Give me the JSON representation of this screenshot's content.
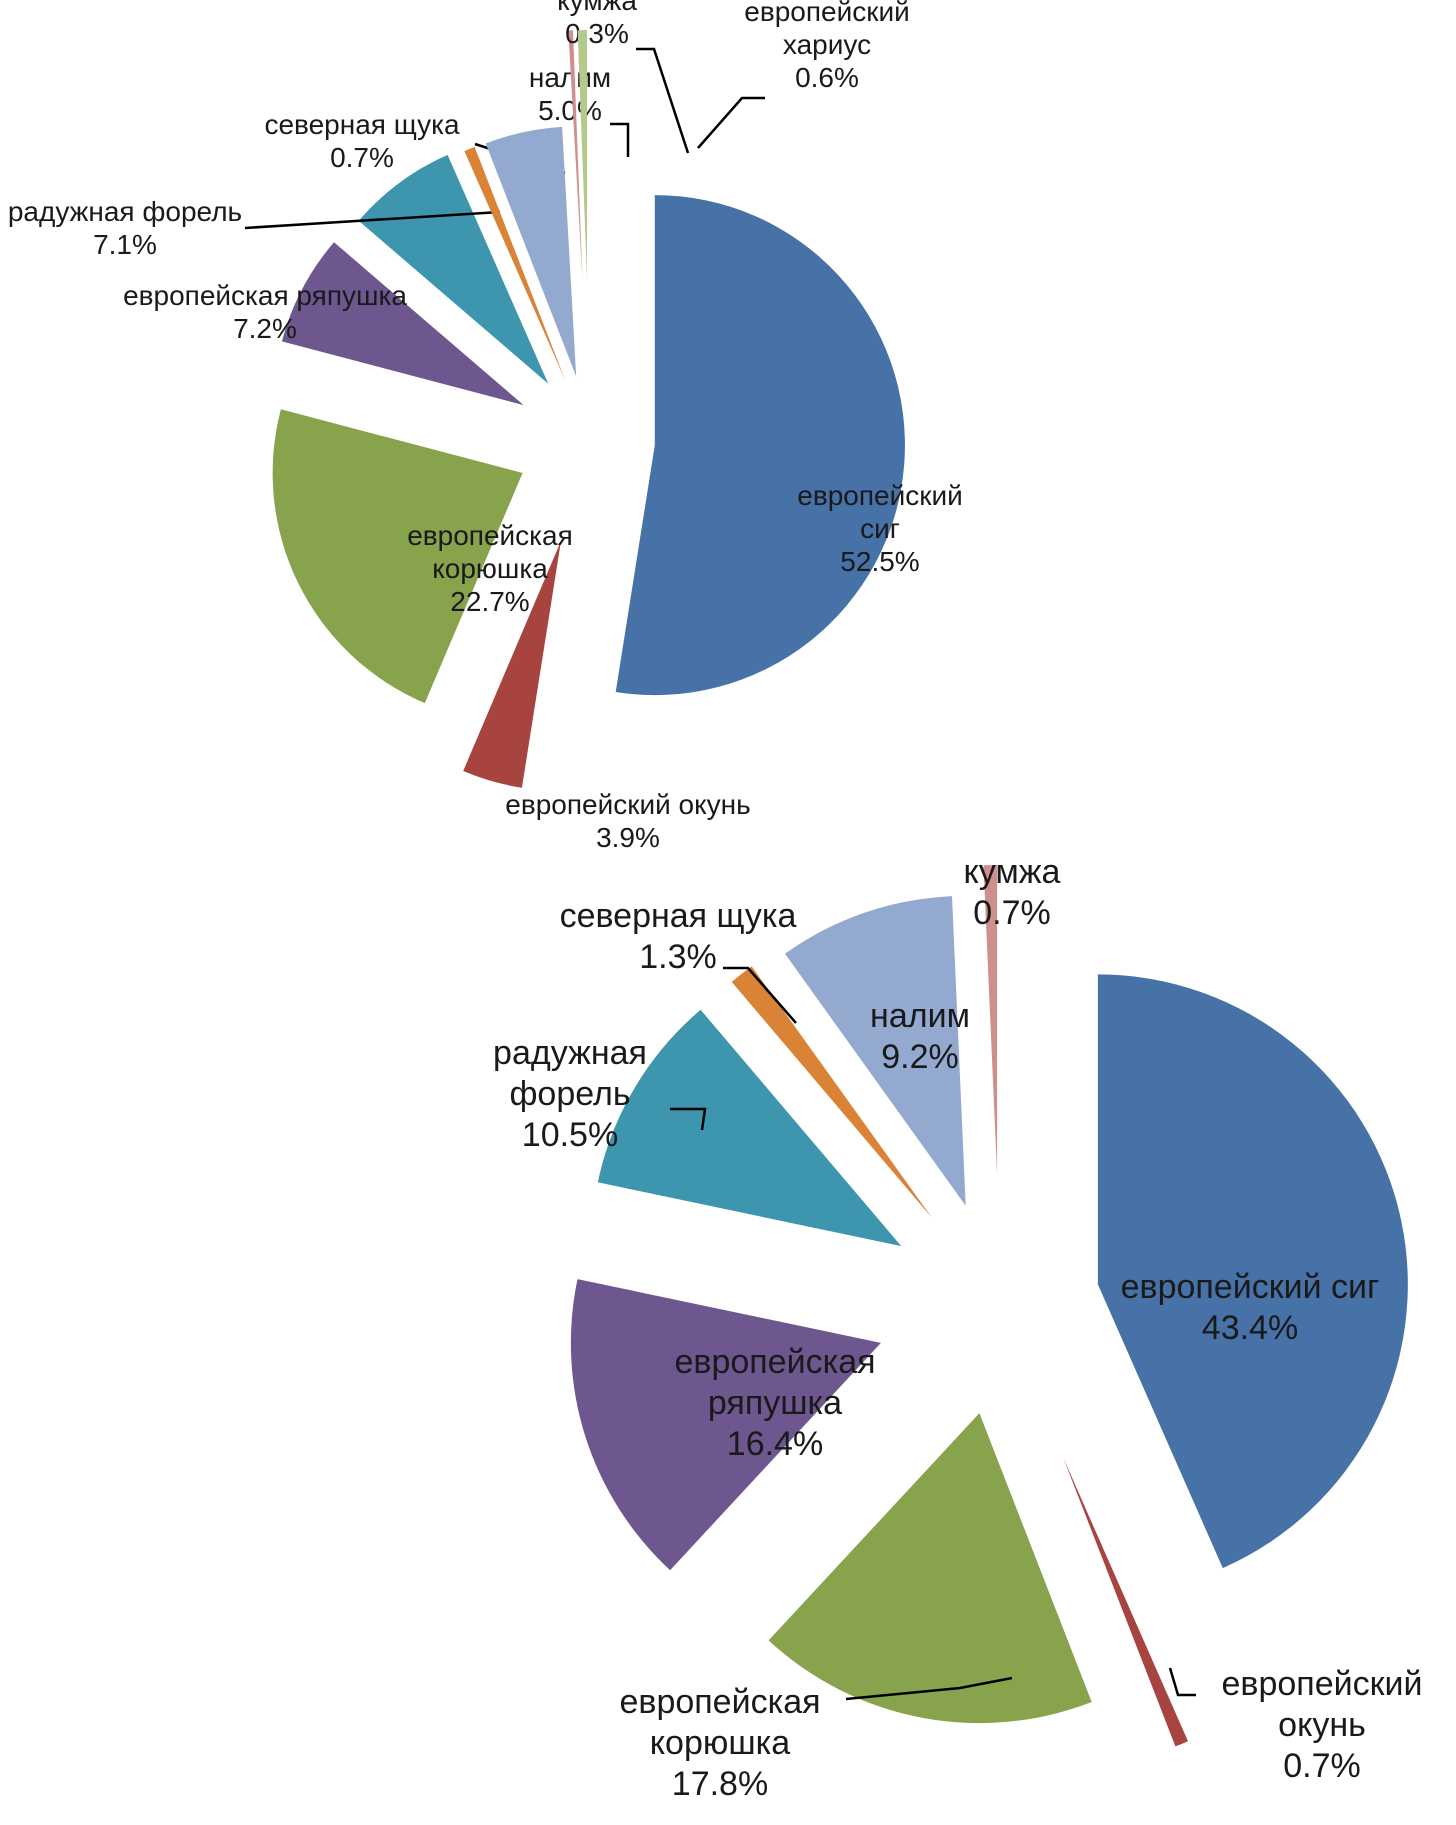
{
  "chart_data": [
    {
      "type": "pie",
      "title": "",
      "slices": [
        {
          "label": "европейский сиг",
          "lines": [
            "европейский",
            "сиг"
          ],
          "value": 52.5,
          "value_text": "52.5%",
          "color": "#4672a7"
        },
        {
          "label": "европейский окунь",
          "lines": [
            "европейский окунь"
          ],
          "value": 3.9,
          "value_text": "3.9%",
          "color": "#a8443f"
        },
        {
          "label": "европейская корюшка",
          "lines": [
            "европейская",
            "корюшка"
          ],
          "value": 22.7,
          "value_text": "22.7%",
          "color": "#87a34c"
        },
        {
          "label": "европейская ряпушка",
          "lines": [
            "европейская ряпушка"
          ],
          "value": 7.2,
          "value_text": "7.2%",
          "color": "#6e568e"
        },
        {
          "label": "радужная форель",
          "lines": [
            "радужная форель"
          ],
          "value": 7.1,
          "value_text": "7.1%",
          "color": "#3d96ae"
        },
        {
          "label": "северная щука",
          "lines": [
            "северная щука"
          ],
          "value": 0.7,
          "value_text": "0.7%",
          "color": "#da8236"
        },
        {
          "label": "налим",
          "lines": [
            "налим"
          ],
          "value": 5.0,
          "value_text": "5.0%",
          "color": "#93a9cf"
        },
        {
          "label": "кумжа",
          "lines": [
            "кумжа"
          ],
          "value": 0.3,
          "value_text": "0.3%",
          "color": "#cf8f8c"
        },
        {
          "label": "европейский хариус",
          "lines": [
            "европейский",
            "хариус"
          ],
          "value": 0.6,
          "value_text": "0.6%",
          "color": "#b3ca8a"
        }
      ]
    },
    {
      "type": "pie",
      "title": "",
      "slices": [
        {
          "label": "европейский сиг",
          "lines": [
            "европейский сиг"
          ],
          "value": 43.4,
          "value_text": "43.4%",
          "color": "#4672a7"
        },
        {
          "label": "европейский окунь",
          "lines": [
            "европейский",
            "окунь"
          ],
          "value": 0.7,
          "value_text": "0.7%",
          "color": "#a8443f"
        },
        {
          "label": "европейская корюшка",
          "lines": [
            "европейская",
            "корюшка"
          ],
          "value": 17.8,
          "value_text": "17.8%",
          "color": "#87a34c"
        },
        {
          "label": "европейская ряпушка",
          "lines": [
            "европейская",
            "ряпушка"
          ],
          "value": 16.4,
          "value_text": "16.4%",
          "color": "#6e568e"
        },
        {
          "label": "радужная форель",
          "lines": [
            "радужная",
            "форель"
          ],
          "value": 10.5,
          "value_text": "10.5%",
          "color": "#3d96ae"
        },
        {
          "label": "северная щука",
          "lines": [
            "северная щука"
          ],
          "value": 1.3,
          "value_text": "1.3%",
          "color": "#da8236"
        },
        {
          "label": "налим",
          "lines": [
            "налим"
          ],
          "value": 9.2,
          "value_text": "9.2%",
          "color": "#93a9cf"
        },
        {
          "label": "кумжа",
          "lines": [
            "кумжа"
          ],
          "value": 0.7,
          "value_text": "0.7%",
          "color": "#cf8f8c"
        }
      ]
    }
  ]
}
